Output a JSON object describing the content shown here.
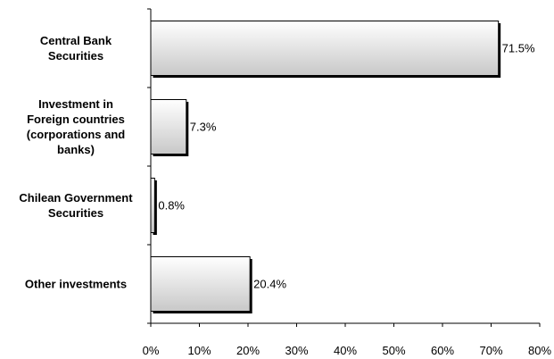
{
  "chart_data": {
    "type": "bar",
    "orientation": "horizontal",
    "categories": [
      [
        "Central Bank",
        "Securities"
      ],
      [
        "Investment in",
        "Foreign countries",
        "(corporations and",
        "banks)"
      ],
      [
        "Chilean Government",
        "Securities"
      ],
      [
        "Other investments"
      ]
    ],
    "values": [
      71.5,
      7.3,
      0.8,
      20.4
    ],
    "value_labels": [
      "71.5%",
      "7.3%",
      "0.8%",
      "20.4%"
    ],
    "xlim": [
      0,
      80
    ],
    "xticks": [
      0,
      10,
      20,
      30,
      40,
      50,
      60,
      70,
      80
    ],
    "xtick_labels": [
      "0%",
      "10%",
      "20%",
      "30%",
      "40%",
      "50%",
      "60%",
      "70%",
      "80%"
    ],
    "title": "",
    "xlabel": "",
    "ylabel": "",
    "grid": false,
    "legend": "none",
    "bar_fill_gradient": [
      "#ffffff",
      "#c8c8c8"
    ],
    "bar_outline": "#000000",
    "bar_shadow": "#000000"
  }
}
